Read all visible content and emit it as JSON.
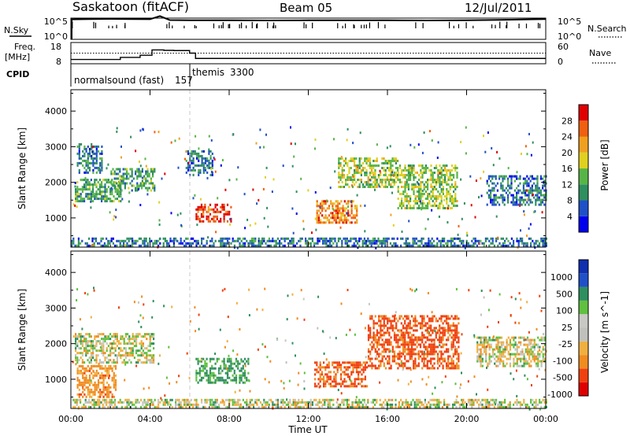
{
  "header": {
    "station": "Saskatoon (fitACF)",
    "beam": "Beam 05",
    "date": "12/Jul/2011"
  },
  "nsky_panel": {
    "left_label": "N.Sky",
    "right_label": "N.Search",
    "left_ticks": [
      "10^5",
      "10^0"
    ],
    "right_ticks": [
      "10^5",
      "10^0"
    ]
  },
  "freq_panel": {
    "left_label_1": "Freq.",
    "left_label_2": "[MHz]",
    "right_label": "Nave",
    "left_ticks": [
      "18",
      "8"
    ],
    "right_ticks": [
      "60",
      "0"
    ]
  },
  "cpid": {
    "label": "CPID",
    "modes": [
      {
        "name": "normalsound (fast)",
        "id": "157"
      },
      {
        "name": "themis",
        "id": "3300"
      }
    ]
  },
  "time_axis": {
    "label": "Time UT",
    "ticks": [
      "00:00",
      "04:00",
      "08:00",
      "12:00",
      "16:00",
      "20:00",
      "00:00"
    ]
  },
  "colors": {
    "power_scale": [
      "#0000ee",
      "#2050c8",
      "#2f8f5f",
      "#57b548",
      "#e0d020",
      "#f0a020",
      "#f06010",
      "#e00000"
    ],
    "velocity_scale": [
      "#e00000",
      "#f04010",
      "#f08c20",
      "#f0b040",
      "#c0c0bc",
      "#c8c8c4",
      "#60c040",
      "#2f8f5f",
      "#2050c8",
      "#1030b0"
    ]
  },
  "chart_data": [
    {
      "type": "line",
      "title": "N.Sky / N.Search",
      "x_unit": "hours UT",
      "x": [
        0,
        1,
        2,
        3,
        4,
        4.5,
        5,
        6,
        8,
        10,
        12,
        14,
        16,
        18,
        20,
        22,
        24
      ],
      "series": [
        {
          "name": "N.Sky",
          "values": [
            50000,
            60000,
            65000,
            60000,
            55000,
            300000,
            35000,
            30000,
            30000,
            28000,
            30000,
            32000,
            30000,
            28000,
            30000,
            40000,
            60000
          ]
        }
      ],
      "yscale": "log"
    },
    {
      "type": "line",
      "x_unit": "hours UT",
      "x": [
        0,
        2,
        2.5,
        3.5,
        4.1,
        4.7,
        5.2,
        6.0,
        6.3,
        12,
        18,
        24
      ],
      "series": [
        {
          "name": "Freq.",
          "values": [
            10.0,
            10.0,
            11.0,
            12.0,
            14.5,
            14.3,
            14.2,
            13.0,
            10.5,
            10.5,
            10.5,
            10.5
          ]
        },
        {
          "name": "Nave",
          "values": [
            30,
            30,
            30,
            30,
            30,
            30,
            30,
            30,
            30,
            30,
            30,
            30
          ]
        }
      ],
      "ylim": [
        8,
        18
      ]
    },
    {
      "type": "heatmap",
      "title": "Power",
      "xlabel": "Time UT",
      "ylabel": "Slant Range [km]",
      "colorbar_label": "Power [dB]",
      "colorbar_ticks": [
        "28",
        "24",
        "20",
        "16",
        "12",
        "8",
        "4"
      ],
      "xlim": [
        0,
        24
      ],
      "ylim": [
        180,
        4600
      ],
      "yticks": [
        1000,
        2000,
        3000,
        4000
      ],
      "features": [
        {
          "t0": 0.2,
          "t1": 2.5,
          "r0": 1500,
          "r1": 2100,
          "level": 12
        },
        {
          "t0": 0.3,
          "t1": 1.6,
          "r0": 2300,
          "r1": 3100,
          "level": 8
        },
        {
          "t0": 2.0,
          "t1": 4.2,
          "r0": 1800,
          "r1": 2400,
          "level": 12
        },
        {
          "t0": 5.8,
          "t1": 7.2,
          "r0": 2200,
          "r1": 2900,
          "level": 8
        },
        {
          "t0": 6.3,
          "t1": 8.1,
          "r0": 900,
          "r1": 1400,
          "level": 28
        },
        {
          "t0": 12.4,
          "t1": 14.5,
          "r0": 900,
          "r1": 1500,
          "level": 24
        },
        {
          "t0": 13.5,
          "t1": 16.5,
          "r0": 1900,
          "r1": 2700,
          "level": 16
        },
        {
          "t0": 16.5,
          "t1": 19.5,
          "r0": 1300,
          "r1": 2500,
          "level": 16
        },
        {
          "t0": 0.0,
          "t1": 24.0,
          "r0": 200,
          "r1": 450,
          "level": 8
        },
        {
          "t0": 21.0,
          "t1": 24.0,
          "r0": 1400,
          "r1": 2200,
          "level": 8
        }
      ]
    },
    {
      "type": "heatmap",
      "title": "Velocity",
      "xlabel": "Time UT",
      "ylabel": "Slant Range [km]",
      "colorbar_label": "Velocity [m s^-1]",
      "colorbar_ticks": [
        "1000",
        "500",
        "100",
        "25",
        "-25",
        "-100",
        "-500",
        "-1000"
      ],
      "xlim": [
        0,
        24
      ],
      "ylim": [
        180,
        4600
      ],
      "yticks": [
        1000,
        2000,
        3000,
        4000
      ],
      "features": [
        {
          "t0": 0.2,
          "t1": 4.2,
          "r0": 1500,
          "r1": 2300,
          "level": 0
        },
        {
          "t0": 0.3,
          "t1": 2.3,
          "r0": 500,
          "r1": 1400,
          "level": -150
        },
        {
          "t0": 6.3,
          "t1": 9.0,
          "r0": 900,
          "r1": 1600,
          "level": 150
        },
        {
          "t0": 12.3,
          "t1": 15.0,
          "r0": 800,
          "r1": 1500,
          "level": -300
        },
        {
          "t0": 15.0,
          "t1": 19.6,
          "r0": 1300,
          "r1": 2800,
          "level": -300
        },
        {
          "t0": 0.0,
          "t1": 24.0,
          "r0": 200,
          "r1": 450,
          "level": 0
        },
        {
          "t0": 20.5,
          "t1": 24.0,
          "r0": 1400,
          "r1": 2200,
          "level": 0
        }
      ]
    }
  ]
}
